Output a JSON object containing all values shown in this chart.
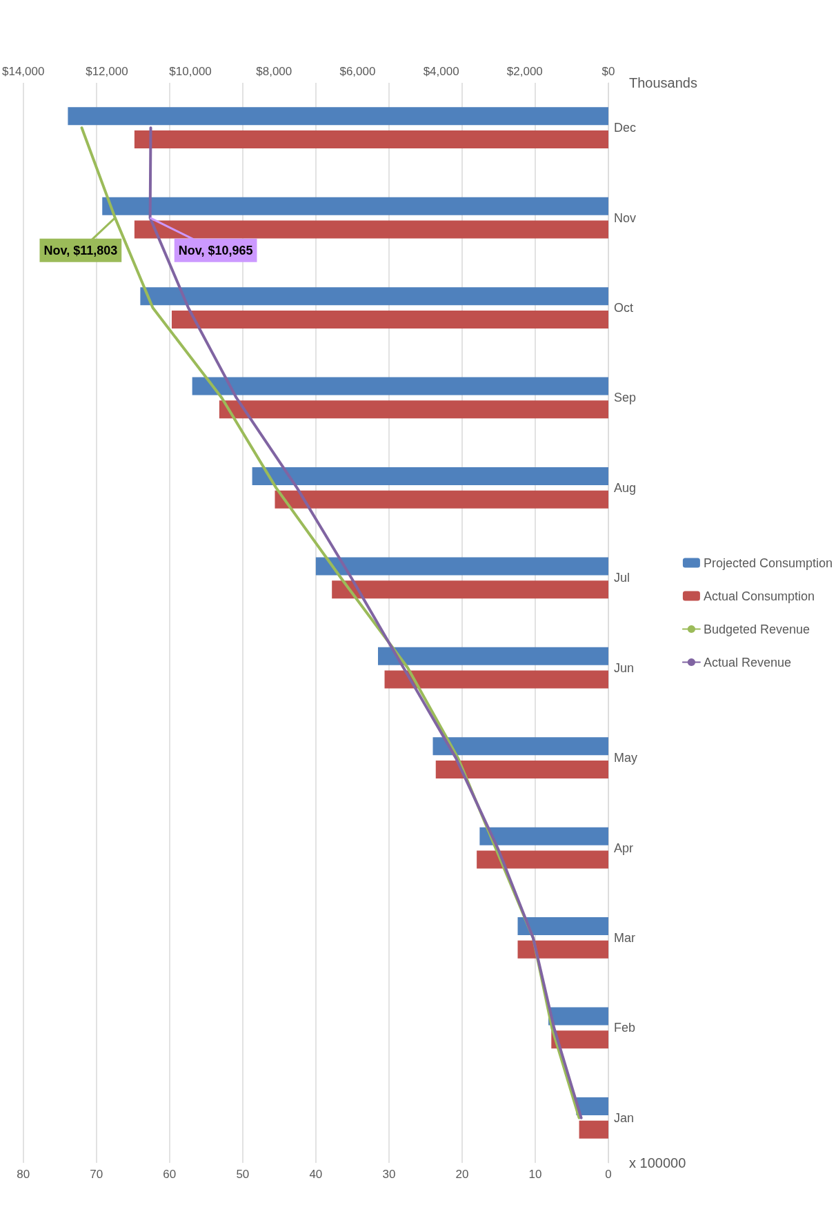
{
  "chart_data": {
    "type": "bar",
    "orientation": "horizontal",
    "categories": [
      "Dec",
      "Nov",
      "Oct",
      "Sep",
      "Aug",
      "Jul",
      "Jun",
      "May",
      "Apr",
      "Mar",
      "Feb",
      "Jan"
    ],
    "series": [
      {
        "name": "Projected Consumption",
        "color": "#4f81bd",
        "values": [
          73.9,
          69.2,
          64.0,
          56.9,
          48.7,
          40.0,
          31.5,
          24.0,
          17.6,
          12.4,
          8.2,
          4.4
        ]
      },
      {
        "name": "Actual Consumption",
        "color": "#c0504d",
        "values": [
          64.8,
          64.8,
          59.7,
          53.2,
          45.6,
          37.8,
          30.6,
          23.6,
          18.0,
          12.4,
          7.8,
          4.0
        ]
      },
      {
        "name": "Budgeted Revenue",
        "type": "line",
        "axis": "x2",
        "color": "#9bbb59",
        "values": [
          12600,
          11803,
          10900,
          9250,
          7950,
          6400,
          4800,
          3600,
          2700,
          1800,
          1350,
          700
        ],
        "value_labels": [
          null,
          "Nov, $11,803",
          null,
          null,
          null,
          null,
          null,
          null,
          null,
          null,
          null,
          null
        ]
      },
      {
        "name": "Actual Revenue",
        "type": "line",
        "axis": "x2",
        "color": "#8064a2",
        "values": [
          10950,
          10965,
          10050,
          8900,
          7450,
          6150,
          4900,
          3650,
          2650,
          1800,
          1300,
          650
        ],
        "value_labels": [
          null,
          "Nov, $10,965",
          null,
          null,
          null,
          null,
          null,
          null,
          null,
          null,
          null,
          null
        ]
      }
    ],
    "xlabel": "x 100000",
    "x2label": "Thousands",
    "xlim": [
      80,
      0
    ],
    "xticks": [
      0,
      10,
      20,
      30,
      40,
      50,
      60,
      70,
      80
    ],
    "x2lim": [
      14000,
      0
    ],
    "x2ticks": [
      {
        "value": 0,
        "label": "$0"
      },
      {
        "value": 2000,
        "label": "$2,000"
      },
      {
        "value": 4000,
        "label": "$4,000"
      },
      {
        "value": 6000,
        "label": "$6,000"
      },
      {
        "value": 8000,
        "label": "$8,000"
      },
      {
        "value": 10000,
        "label": "$10,000"
      },
      {
        "value": 12000,
        "label": "$12,000"
      },
      {
        "value": 14000,
        "label": "$14,000"
      }
    ],
    "grid": "x",
    "legend": "right",
    "marker": "none",
    "line_style": "solid"
  }
}
